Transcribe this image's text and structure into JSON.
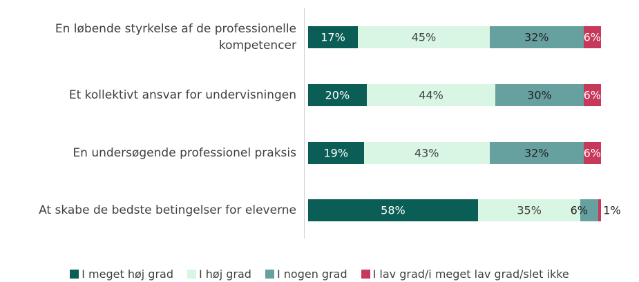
{
  "chart_data": {
    "type": "bar",
    "orientation": "horizontal",
    "stacked": true,
    "categories": [
      "En løbende styrkelse af de professionelle kompetencer",
      "Et kollektivt ansvar for undervisningen",
      "En undersøgende professionel praksis",
      "At skabe de bedste betingelser for eleverne"
    ],
    "series": [
      {
        "name": "I meget høj grad",
        "color": "#0b5e55",
        "label_color": "#ffffff",
        "values": [
          17,
          20,
          19,
          58
        ],
        "value_labels": [
          "17%",
          "20%",
          "19%",
          "58%"
        ]
      },
      {
        "name": "I høj grad",
        "color": "#d9f5e3",
        "label_color": "#404040",
        "values": [
          45,
          44,
          43,
          35
        ],
        "value_labels": [
          "45%",
          "44%",
          "43%",
          "35%"
        ]
      },
      {
        "name": "I nogen grad",
        "color": "#66a19f",
        "label_color": "#222222",
        "values": [
          32,
          30,
          32,
          6
        ],
        "value_labels": [
          "32%",
          "30%",
          "32%",
          "6%"
        ]
      },
      {
        "name": "I lav grad/i meget lav grad/slet ikke",
        "color": "#c8385a",
        "label_color": "#ffffff",
        "values": [
          6,
          6,
          6,
          1
        ],
        "value_labels": [
          "6%",
          "6%",
          "6%",
          "1%"
        ]
      }
    ],
    "legend": "bottom"
  }
}
